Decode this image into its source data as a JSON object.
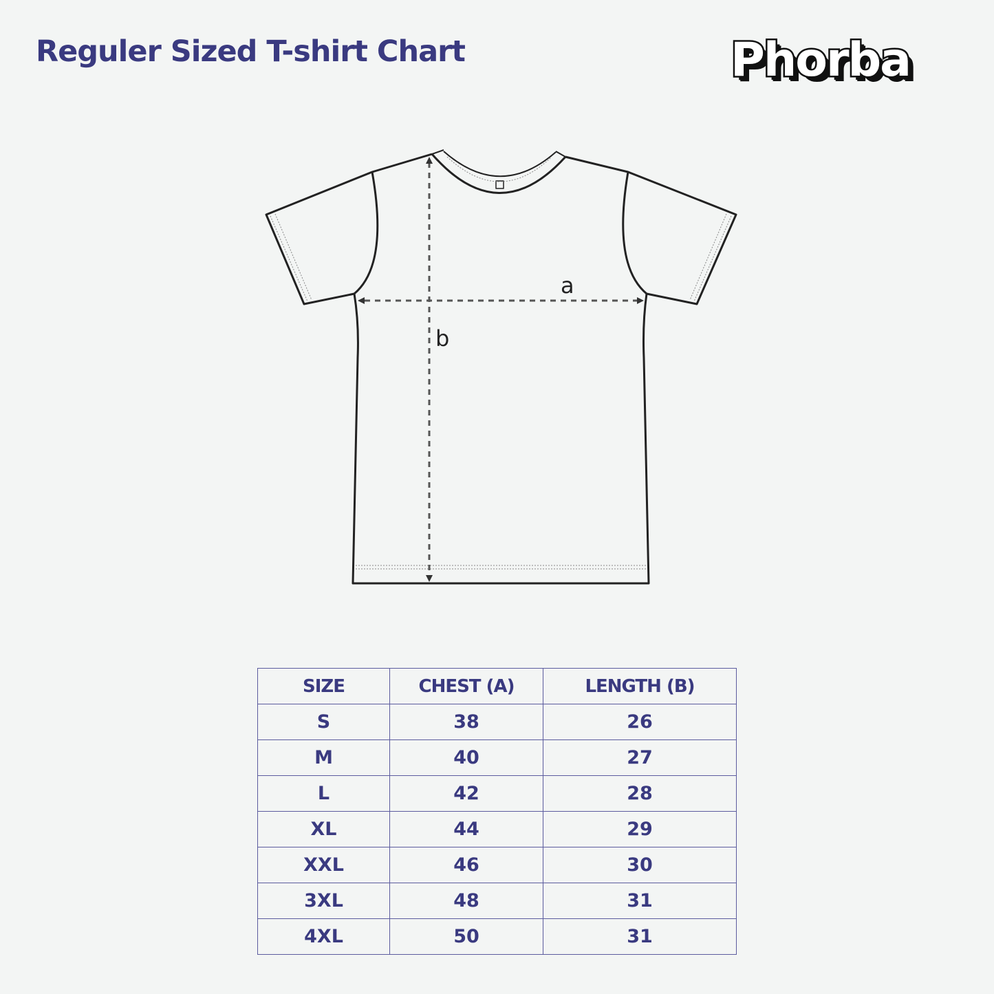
{
  "title": "Reguler Sized T-shirt Chart",
  "logo": "Phorba",
  "diagram": {
    "label_a": "a",
    "label_b": "b"
  },
  "table": {
    "headers": [
      "SIZE",
      "CHEST (A)",
      "LENGTH (B)"
    ],
    "rows": [
      [
        "S",
        "38",
        "26"
      ],
      [
        "M",
        "40",
        "27"
      ],
      [
        "L",
        "42",
        "28"
      ],
      [
        "XL",
        "44",
        "29"
      ],
      [
        "XXL",
        "46",
        "30"
      ],
      [
        "3XL",
        "48",
        "31"
      ],
      [
        "4XL",
        "50",
        "31"
      ]
    ]
  },
  "colors": {
    "text": "#3a3a80",
    "background": "#f3f5f4",
    "border": "#5b5b9e"
  }
}
